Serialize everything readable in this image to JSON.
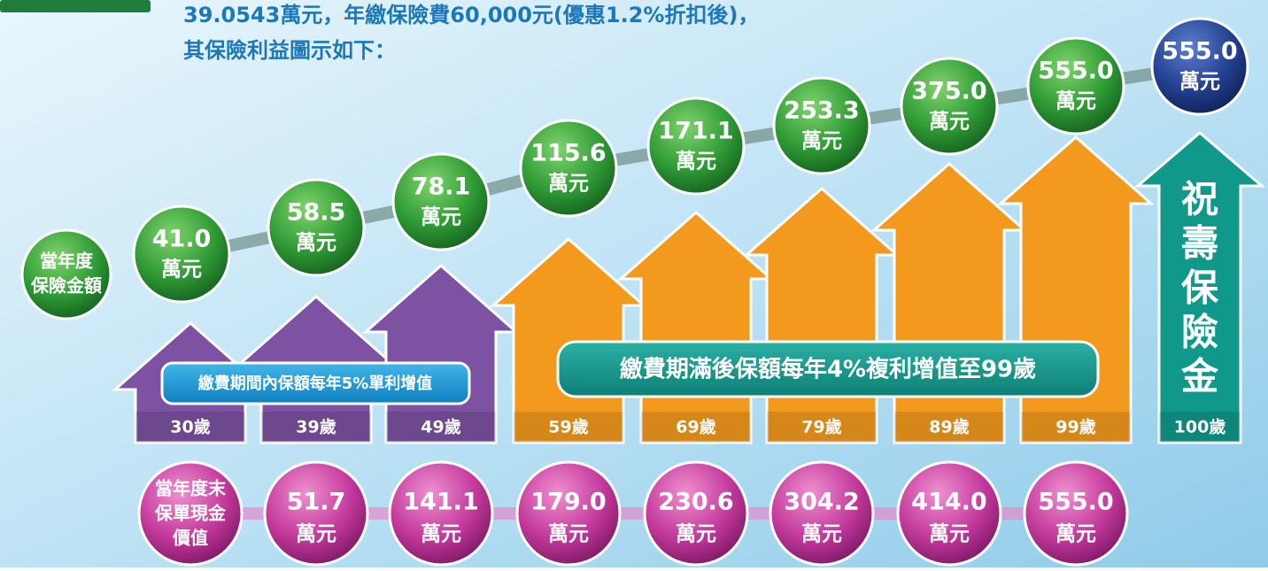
{
  "header": {
    "lines": [
      "39.0543萬元，年繳保險費60,000元(優惠1.2%折扣後)，",
      "其保險利益圖示如下："
    ]
  },
  "sum_label": {
    "lines": [
      "當年度",
      "保險金額"
    ]
  },
  "sum_bubbles": [
    {
      "value": "41.0",
      "unit": "萬元"
    },
    {
      "value": "58.5",
      "unit": "萬元"
    },
    {
      "value": "78.1",
      "unit": "萬元"
    },
    {
      "value": "115.6",
      "unit": "萬元"
    },
    {
      "value": "171.1",
      "unit": "萬元"
    },
    {
      "value": "253.3",
      "unit": "萬元"
    },
    {
      "value": "375.0",
      "unit": "萬元"
    },
    {
      "value": "555.0",
      "unit": "萬元"
    },
    {
      "value": "555.0",
      "unit": "萬元"
    }
  ],
  "arrows": [
    {
      "age": "30歲",
      "color": "#7d52a3"
    },
    {
      "age": "39歲",
      "color": "#7d52a3"
    },
    {
      "age": "49歲",
      "color": "#7d52a3"
    },
    {
      "age": "59歲",
      "color": "#f39a1e"
    },
    {
      "age": "69歲",
      "color": "#f39a1e"
    },
    {
      "age": "79歲",
      "color": "#f39a1e"
    },
    {
      "age": "89歲",
      "color": "#f39a1e"
    },
    {
      "age": "99歲",
      "color": "#f39a1e"
    },
    {
      "age": "100歲",
      "color": "#10998b"
    }
  ],
  "banners": [
    "繳費期間內保額每年5%單利增值",
    "繳費期滿後保額每年4%複利增值至99歲"
  ],
  "final_arrow_text": [
    "祝",
    "壽",
    "保",
    "險",
    "金"
  ],
  "cash_label": {
    "lines": [
      "當年度末",
      "保單現金",
      "價值"
    ]
  },
  "cash_bubbles": [
    {
      "value": "51.7",
      "unit": "萬元"
    },
    {
      "value": "141.1",
      "unit": "萬元"
    },
    {
      "value": "179.0",
      "unit": "萬元"
    },
    {
      "value": "230.6",
      "unit": "萬元"
    },
    {
      "value": "304.2",
      "unit": "萬元"
    },
    {
      "value": "414.0",
      "unit": "萬元"
    },
    {
      "value": "555.0",
      "unit": "萬元"
    }
  ]
}
